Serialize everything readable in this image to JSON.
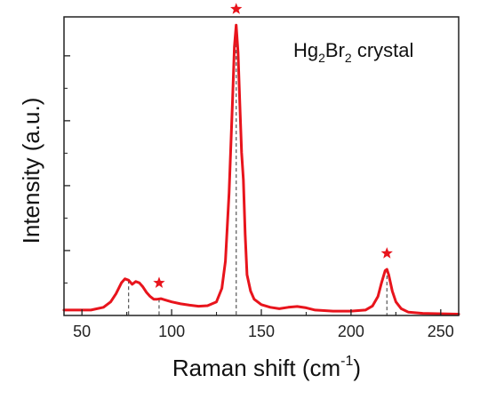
{
  "chart_data": {
    "type": "line",
    "annotation": {
      "main": "Hg",
      "sub1": "2",
      "mid": "Br",
      "sub2": "2",
      "tail": " crystal"
    },
    "xlabel": "Raman shift (cm",
    "xlabel_sup": "-1",
    "xlabel_close": ")",
    "ylabel": "Intensity (a.u.)",
    "xlim": [
      40,
      260
    ],
    "ylim": [
      0,
      1.1
    ],
    "x_ticks": [
      50,
      100,
      150,
      200,
      250
    ],
    "y_ticks_minor_count": 4,
    "grid": false,
    "series": [
      {
        "color": "#e8141c",
        "points": [
          [
            40,
            0.02
          ],
          [
            55,
            0.02
          ],
          [
            62,
            0.03
          ],
          [
            66,
            0.05
          ],
          [
            69,
            0.08
          ],
          [
            72,
            0.12
          ],
          [
            74,
            0.135
          ],
          [
            76,
            0.13
          ],
          [
            78,
            0.115
          ],
          [
            80,
            0.125
          ],
          [
            82,
            0.12
          ],
          [
            84,
            0.105
          ],
          [
            86,
            0.085
          ],
          [
            88,
            0.07
          ],
          [
            90,
            0.06
          ],
          [
            92,
            0.06
          ],
          [
            94,
            0.062
          ],
          [
            96,
            0.058
          ],
          [
            100,
            0.05
          ],
          [
            105,
            0.043
          ],
          [
            110,
            0.038
          ],
          [
            115,
            0.034
          ],
          [
            120,
            0.036
          ],
          [
            125,
            0.05
          ],
          [
            128,
            0.1
          ],
          [
            130,
            0.2
          ],
          [
            132,
            0.45
          ],
          [
            134,
            0.8
          ],
          [
            135,
            0.99
          ],
          [
            136,
            1.07
          ],
          [
            137,
            0.97
          ],
          [
            138,
            0.78
          ],
          [
            139,
            0.6
          ],
          [
            140,
            0.5
          ],
          [
            141,
            0.3
          ],
          [
            142,
            0.15
          ],
          [
            144,
            0.09
          ],
          [
            146,
            0.06
          ],
          [
            150,
            0.04
          ],
          [
            155,
            0.03
          ],
          [
            160,
            0.025
          ],
          [
            165,
            0.03
          ],
          [
            170,
            0.033
          ],
          [
            175,
            0.028
          ],
          [
            180,
            0.02
          ],
          [
            190,
            0.016
          ],
          [
            200,
            0.016
          ],
          [
            208,
            0.02
          ],
          [
            212,
            0.035
          ],
          [
            215,
            0.07
          ],
          [
            217,
            0.12
          ],
          [
            219,
            0.165
          ],
          [
            220,
            0.17
          ],
          [
            221,
            0.15
          ],
          [
            223,
            0.09
          ],
          [
            225,
            0.05
          ],
          [
            228,
            0.025
          ],
          [
            232,
            0.012
          ],
          [
            240,
            0.008
          ],
          [
            260,
            0.005
          ]
        ]
      }
    ],
    "peaks": [
      {
        "x": 76,
        "y": 0.13,
        "star": false
      },
      {
        "x": 93,
        "y": 0.061,
        "star": true
      },
      {
        "x": 136,
        "y": 1.07,
        "star": true
      },
      {
        "x": 220,
        "y": 0.17,
        "star": true
      }
    ],
    "star_color": "#e8141c",
    "dash_color": "#555555"
  }
}
